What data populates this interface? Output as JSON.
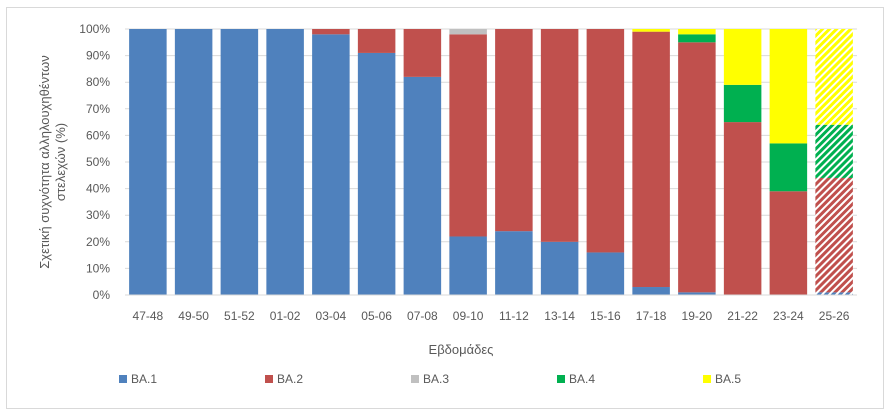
{
  "chart_data": {
    "type": "bar",
    "stacked": true,
    "normalized": true,
    "title": "",
    "xlabel": "Εβδομάδες",
    "ylabel_lines": [
      "Σχετική συχνότητα αλληλουχηθέντων",
      "στελεχών (%)"
    ],
    "ylim": [
      0,
      100
    ],
    "yticks": [
      "0%",
      "10%",
      "20%",
      "30%",
      "40%",
      "50%",
      "60%",
      "70%",
      "80%",
      "90%",
      "100%"
    ],
    "grid": "horizontal",
    "legend_position": "bottom",
    "categories": [
      "47-48",
      "49-50",
      "51-52",
      "01-02",
      "03-04",
      "05-06",
      "07-08",
      "09-10",
      "11-12",
      "13-14",
      "15-16",
      "17-18",
      "19-20",
      "21-22",
      "23-24",
      "25-26"
    ],
    "hatched_categories": [
      "25-26"
    ],
    "series": [
      {
        "name": "BA.1",
        "color": "#4f81bd",
        "values": [
          100,
          100,
          100,
          100,
          98,
          91,
          82,
          22,
          24,
          20,
          16,
          3,
          1,
          0,
          0,
          1
        ]
      },
      {
        "name": "BA.2",
        "color": "#c0504d",
        "values": [
          0,
          0,
          0,
          0,
          2,
          9,
          18,
          76,
          76,
          80,
          84,
          96,
          94,
          65,
          39,
          43
        ]
      },
      {
        "name": "BA.3",
        "color": "#c0c0c0",
        "values": [
          0,
          0,
          0,
          0,
          0,
          0,
          0,
          2,
          0,
          0,
          0,
          0,
          0,
          0,
          0,
          0
        ]
      },
      {
        "name": "BA.4",
        "color": "#00b050",
        "values": [
          0,
          0,
          0,
          0,
          0,
          0,
          0,
          0,
          0,
          0,
          0,
          0,
          3,
          14,
          18,
          20
        ]
      },
      {
        "name": "BA.5",
        "color": "#ffff00",
        "values": [
          0,
          0,
          0,
          0,
          0,
          0,
          0,
          0,
          0,
          0,
          0,
          1,
          2,
          21,
          43,
          36
        ]
      }
    ]
  }
}
